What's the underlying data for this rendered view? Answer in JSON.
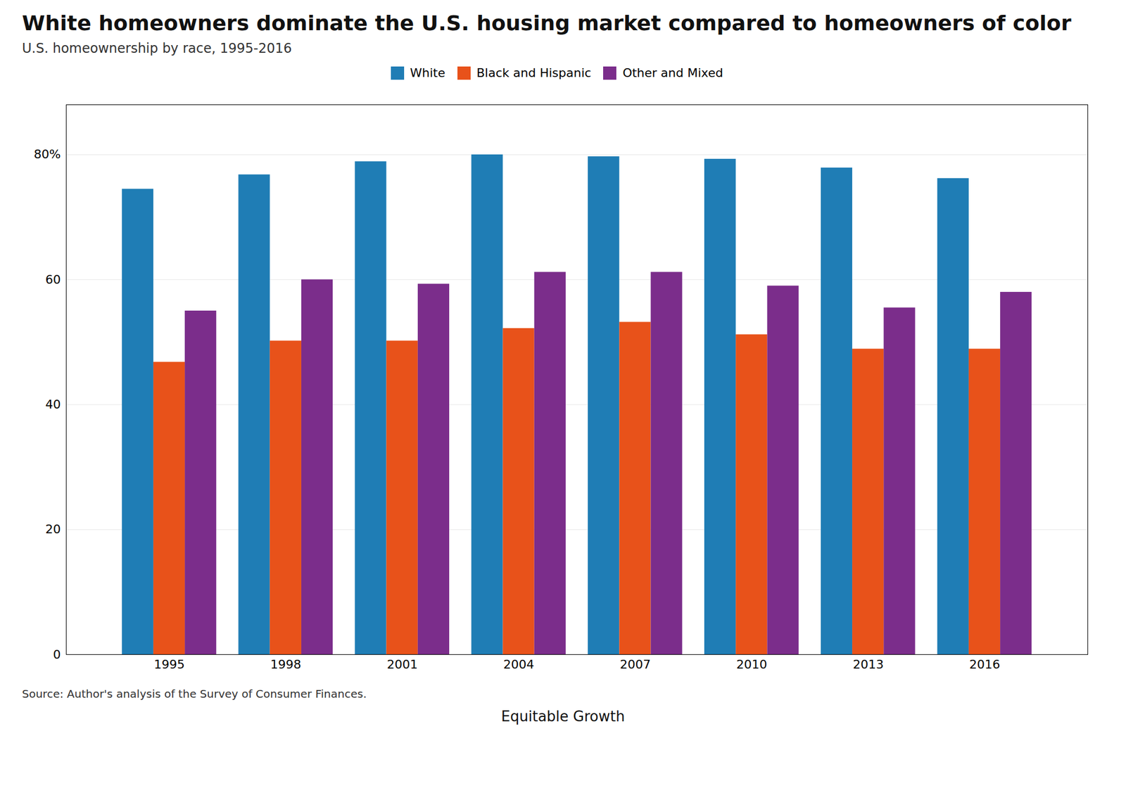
{
  "chart_data": {
    "type": "bar",
    "title": "White homeowners dominate the U.S. housing market compared to homeowners of color",
    "subtitle": "U.S. homeownership by race, 1995-2016",
    "caption": "Source: Author's analysis of the Survey of Consumer Finances.",
    "annotations": [
      "Equitable Growth"
    ],
    "categories": [
      "1995",
      "1998",
      "2001",
      "2004",
      "2007",
      "2010",
      "2013",
      "2016"
    ],
    "series": [
      {
        "name": "White",
        "color": "#1f7db5",
        "values": [
          74.5,
          76.8,
          78.9,
          80.0,
          79.7,
          79.3,
          77.9,
          76.2
        ]
      },
      {
        "name": "Black and Hispanic",
        "color": "#e8521a",
        "values": [
          46.8,
          50.2,
          50.2,
          52.2,
          53.2,
          51.2,
          48.9,
          48.9
        ]
      },
      {
        "name": "Other and Mixed",
        "color": "#7b2d8b",
        "values": [
          55.0,
          60.0,
          59.3,
          61.2,
          61.2,
          59.0,
          55.5,
          58.0
        ]
      }
    ],
    "ylim": [
      0,
      88
    ],
    "yticks": [
      0,
      20,
      40,
      60,
      {
        "value": 80,
        "label": "80%"
      }
    ],
    "grid": true,
    "legend": "top"
  }
}
